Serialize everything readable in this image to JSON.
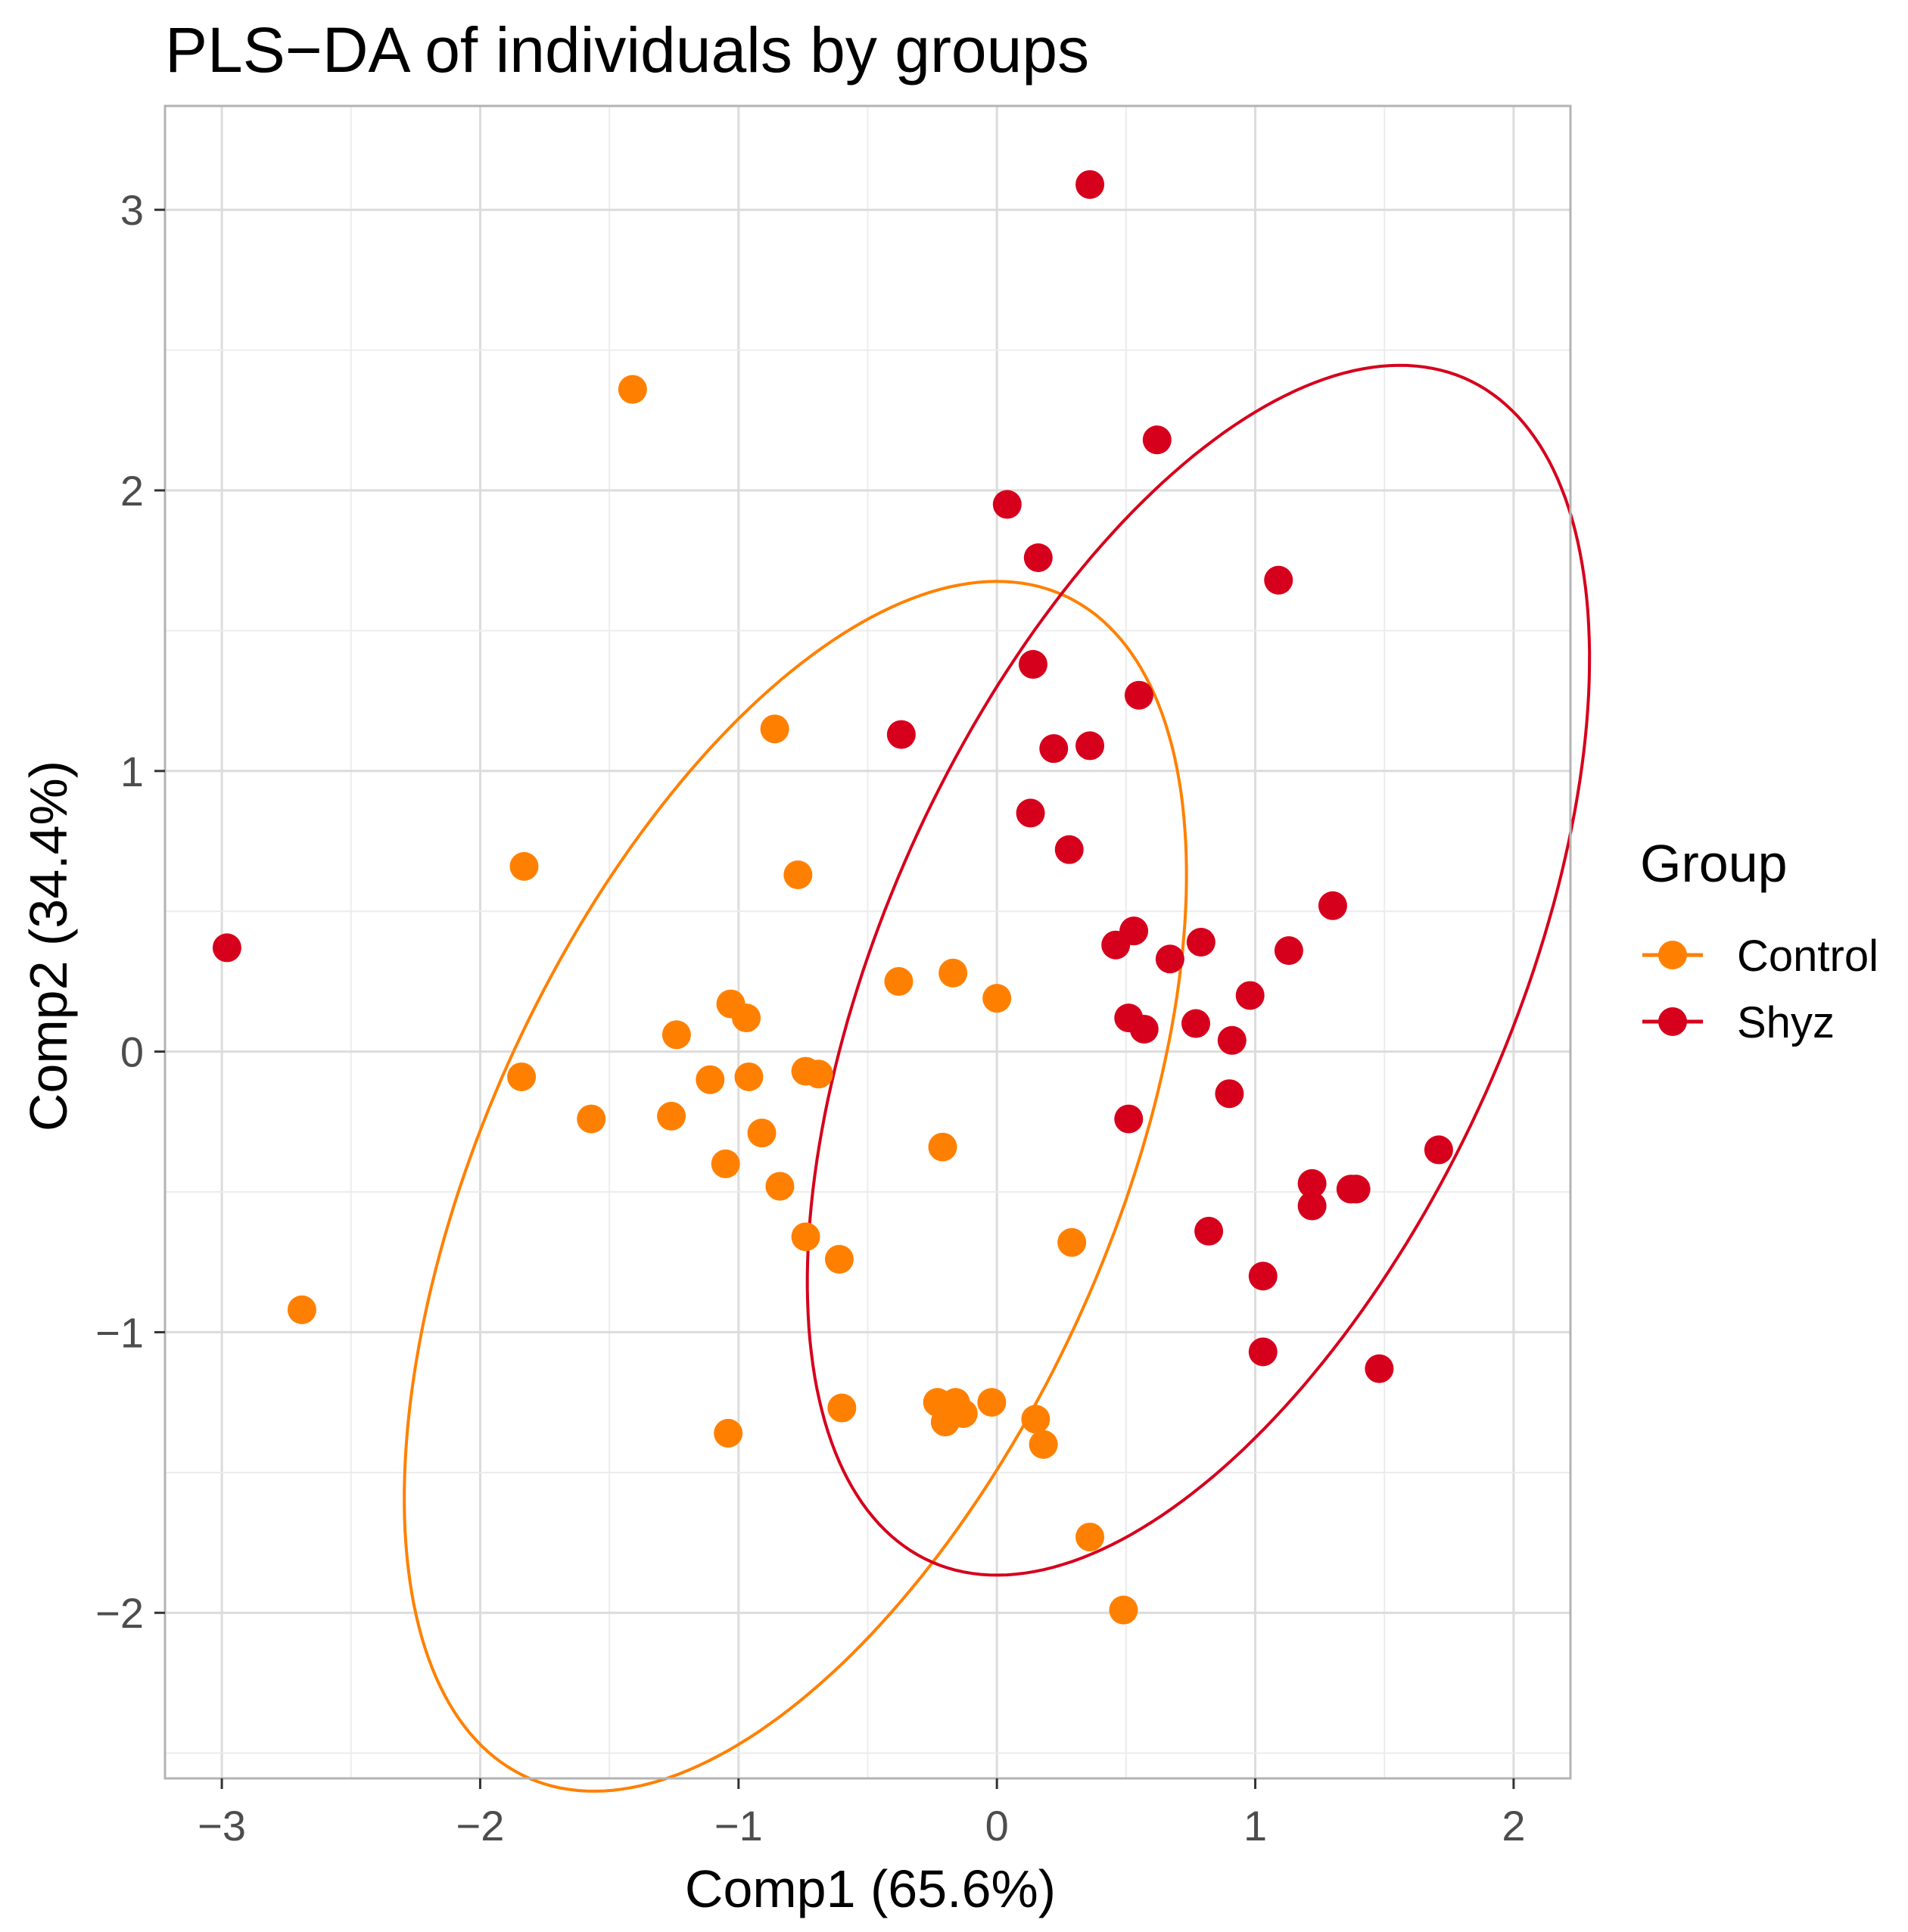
{
  "chart_data": {
    "type": "scatter",
    "title": "PLS−DA of individuals by groups",
    "xlabel": "Comp1 (65.6%)",
    "ylabel": "Comp2 (34.4%)",
    "xlim": [
      -3.22,
      2.22
    ],
    "ylim": [
      -2.59,
      3.37
    ],
    "x_ticks": [
      -3,
      -2,
      -1,
      0,
      1,
      2
    ],
    "x_tick_labels": [
      "−3",
      "−2",
      "−1",
      "0",
      "1",
      "2"
    ],
    "y_ticks": [
      -2,
      -1,
      0,
      1,
      2,
      3
    ],
    "y_tick_labels": [
      "−2",
      "−1",
      "0",
      "1",
      "2",
      "3"
    ],
    "grid": true,
    "legend": {
      "title": "Group",
      "position": "right"
    },
    "series": [
      {
        "name": "Control",
        "color": "#FF8000",
        "ellipse": {
          "cx": -0.78,
          "cy": -0.48,
          "a": 2.35,
          "b": 1.19,
          "angle_deg": 62.5
        },
        "points": [
          [
            -2.69,
            -0.92
          ],
          [
            -1.83,
            0.66
          ],
          [
            -1.84,
            -0.09
          ],
          [
            -1.57,
            -0.24
          ],
          [
            -1.41,
            2.36
          ],
          [
            -1.24,
            0.06
          ],
          [
            -1.26,
            -0.23
          ],
          [
            -1.11,
            -0.1
          ],
          [
            -1.05,
            -0.4
          ],
          [
            -1.03,
            0.17
          ],
          [
            -0.97,
            0.12
          ],
          [
            -0.96,
            -0.09
          ],
          [
            -0.91,
            -0.29
          ],
          [
            -0.84,
            -0.48
          ],
          [
            -0.86,
            1.15
          ],
          [
            -0.77,
            0.63
          ],
          [
            -0.74,
            -0.07
          ],
          [
            -0.69,
            -0.08
          ],
          [
            -0.74,
            -0.66
          ],
          [
            -0.61,
            -0.74
          ],
          [
            -0.6,
            -1.27
          ],
          [
            -1.04,
            -1.36
          ],
          [
            -0.38,
            0.25
          ],
          [
            -0.17,
            0.28
          ],
          [
            -0.21,
            -0.34
          ],
          [
            0.0,
            0.19
          ],
          [
            -0.23,
            -1.25
          ],
          [
            -0.2,
            -1.32
          ],
          [
            -0.16,
            -1.25
          ],
          [
            -0.13,
            -1.29
          ],
          [
            -0.02,
            -1.25
          ],
          [
            0.15,
            -1.31
          ],
          [
            0.18,
            -1.4
          ],
          [
            0.29,
            -0.68
          ],
          [
            0.36,
            -1.73
          ],
          [
            0.49,
            -1.99
          ]
        ]
      },
      {
        "name": "Shyz",
        "color": "#D6001C",
        "ellipse": {
          "cx": 0.78,
          "cy": 0.29,
          "a": 2.35,
          "b": 1.19,
          "angle_deg": 62.5
        },
        "points": [
          [
            -2.98,
            0.37
          ],
          [
            0.36,
            3.09
          ],
          [
            0.62,
            2.18
          ],
          [
            0.04,
            1.95
          ],
          [
            0.16,
            1.76
          ],
          [
            1.09,
            1.68
          ],
          [
            0.14,
            1.38
          ],
          [
            0.55,
            1.27
          ],
          [
            -0.37,
            1.13
          ],
          [
            0.22,
            1.08
          ],
          [
            0.36,
            1.09
          ],
          [
            0.13,
            0.85
          ],
          [
            0.28,
            0.72
          ],
          [
            1.3,
            0.52
          ],
          [
            0.46,
            0.38
          ],
          [
            0.53,
            0.43
          ],
          [
            0.67,
            0.33
          ],
          [
            0.79,
            0.39
          ],
          [
            1.13,
            0.36
          ],
          [
            0.98,
            0.2
          ],
          [
            0.51,
            0.12
          ],
          [
            0.57,
            0.08
          ],
          [
            0.77,
            0.1
          ],
          [
            0.91,
            0.04
          ],
          [
            0.9,
            -0.15
          ],
          [
            0.51,
            -0.24
          ],
          [
            1.71,
            -0.35
          ],
          [
            1.22,
            -0.47
          ],
          [
            1.37,
            -0.49
          ],
          [
            1.39,
            -0.49
          ],
          [
            1.22,
            -0.55
          ],
          [
            0.82,
            -0.64
          ],
          [
            1.03,
            -0.8
          ],
          [
            1.03,
            -1.07
          ],
          [
            1.48,
            -1.13
          ]
        ]
      }
    ]
  }
}
